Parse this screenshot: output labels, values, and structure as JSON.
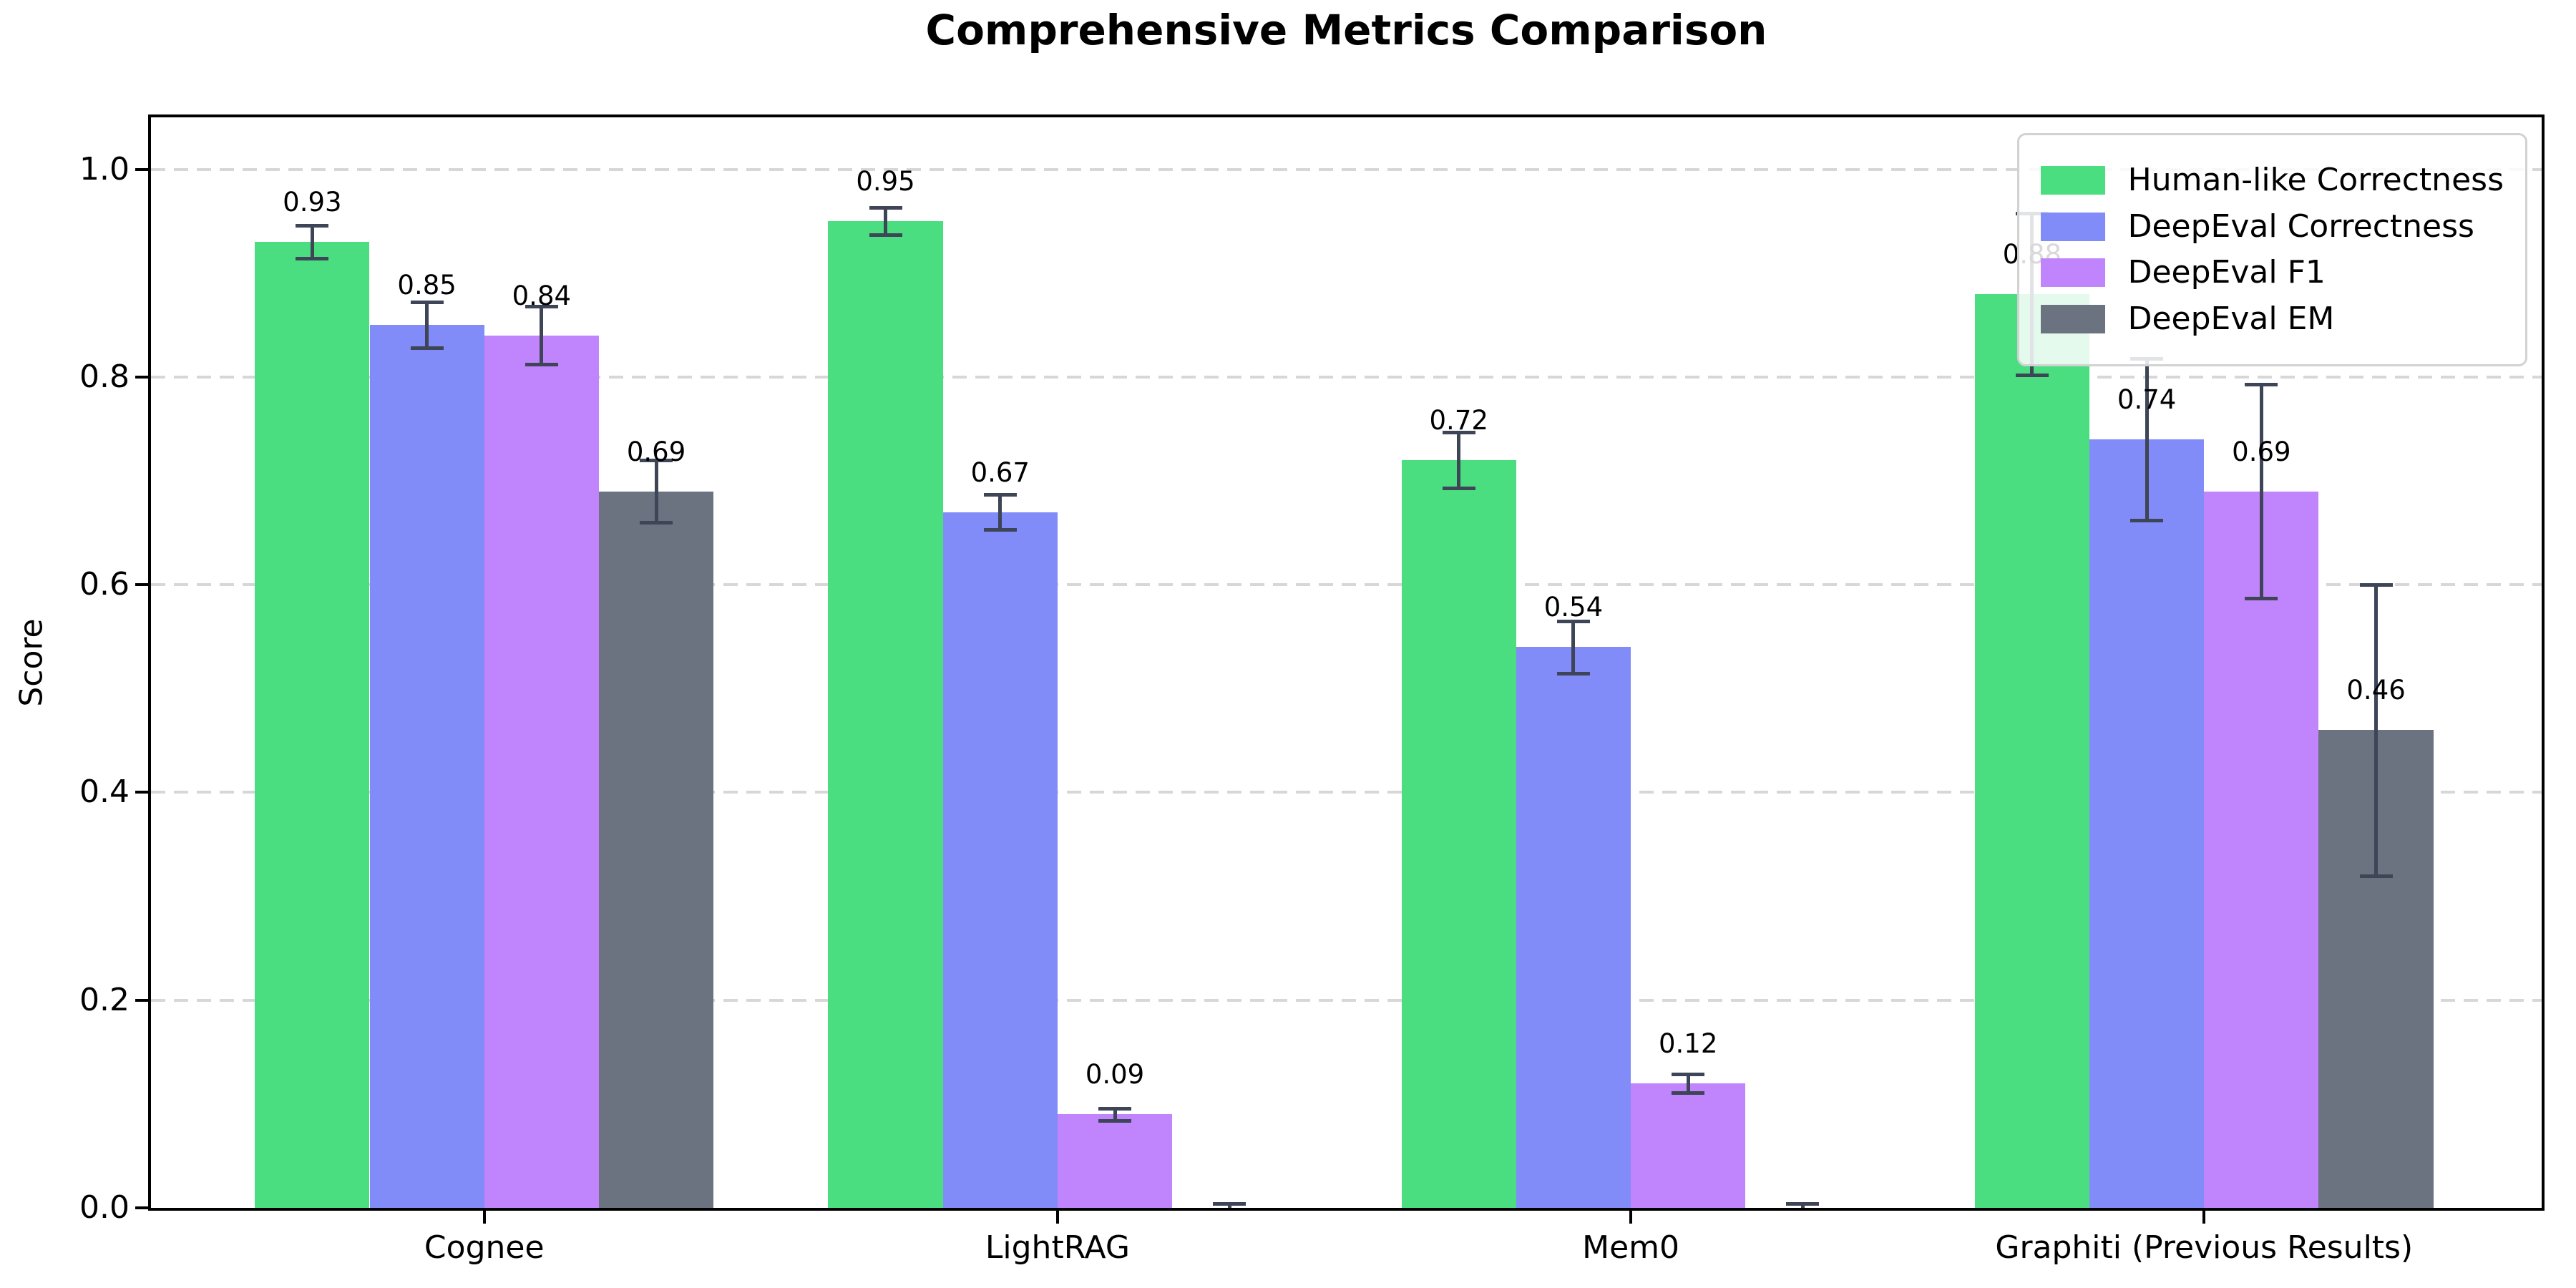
{
  "title": "Comprehensive Metrics Comparison",
  "chart_data": {
    "type": "bar",
    "title": "Comprehensive Metrics Comparison",
    "xlabel": "",
    "ylabel": "Score",
    "categories": [
      "Cognee",
      "LightRAG",
      "Mem0",
      "Graphiti (Previous Results)"
    ],
    "series": [
      {
        "name": "Human-like Correctness",
        "color": "#4ade80",
        "values": [
          0.93,
          0.95,
          0.72,
          0.88
        ],
        "errors": [
          0.016,
          0.013,
          0.027,
          0.078
        ]
      },
      {
        "name": "DeepEval Correctness",
        "color": "#818cf8",
        "values": [
          0.85,
          0.67,
          0.54,
          0.74
        ],
        "errors": [
          0.022,
          0.017,
          0.025,
          0.078
        ]
      },
      {
        "name": "DeepEval F1",
        "color": "#c084fc",
        "values": [
          0.84,
          0.09,
          0.12,
          0.69
        ],
        "errors": [
          0.028,
          0.006,
          0.009,
          0.103
        ]
      },
      {
        "name": "DeepEval EM",
        "color": "#6b7280",
        "values": [
          0.69,
          0.0,
          0.0,
          0.46
        ],
        "errors": [
          0.03,
          0.004,
          0.004,
          0.14
        ]
      }
    ],
    "y_ticks": [
      0.0,
      0.2,
      0.4,
      0.6,
      0.8,
      1.0
    ],
    "ylim": [
      0,
      1.05
    ],
    "grid": "horizontal-dashed",
    "gridline_color": "#d7d7d7",
    "error_bar_color": "#3d4557",
    "legend_position": "upper-right",
    "value_label_decimals": 2,
    "background_color": "#ffffff"
  }
}
